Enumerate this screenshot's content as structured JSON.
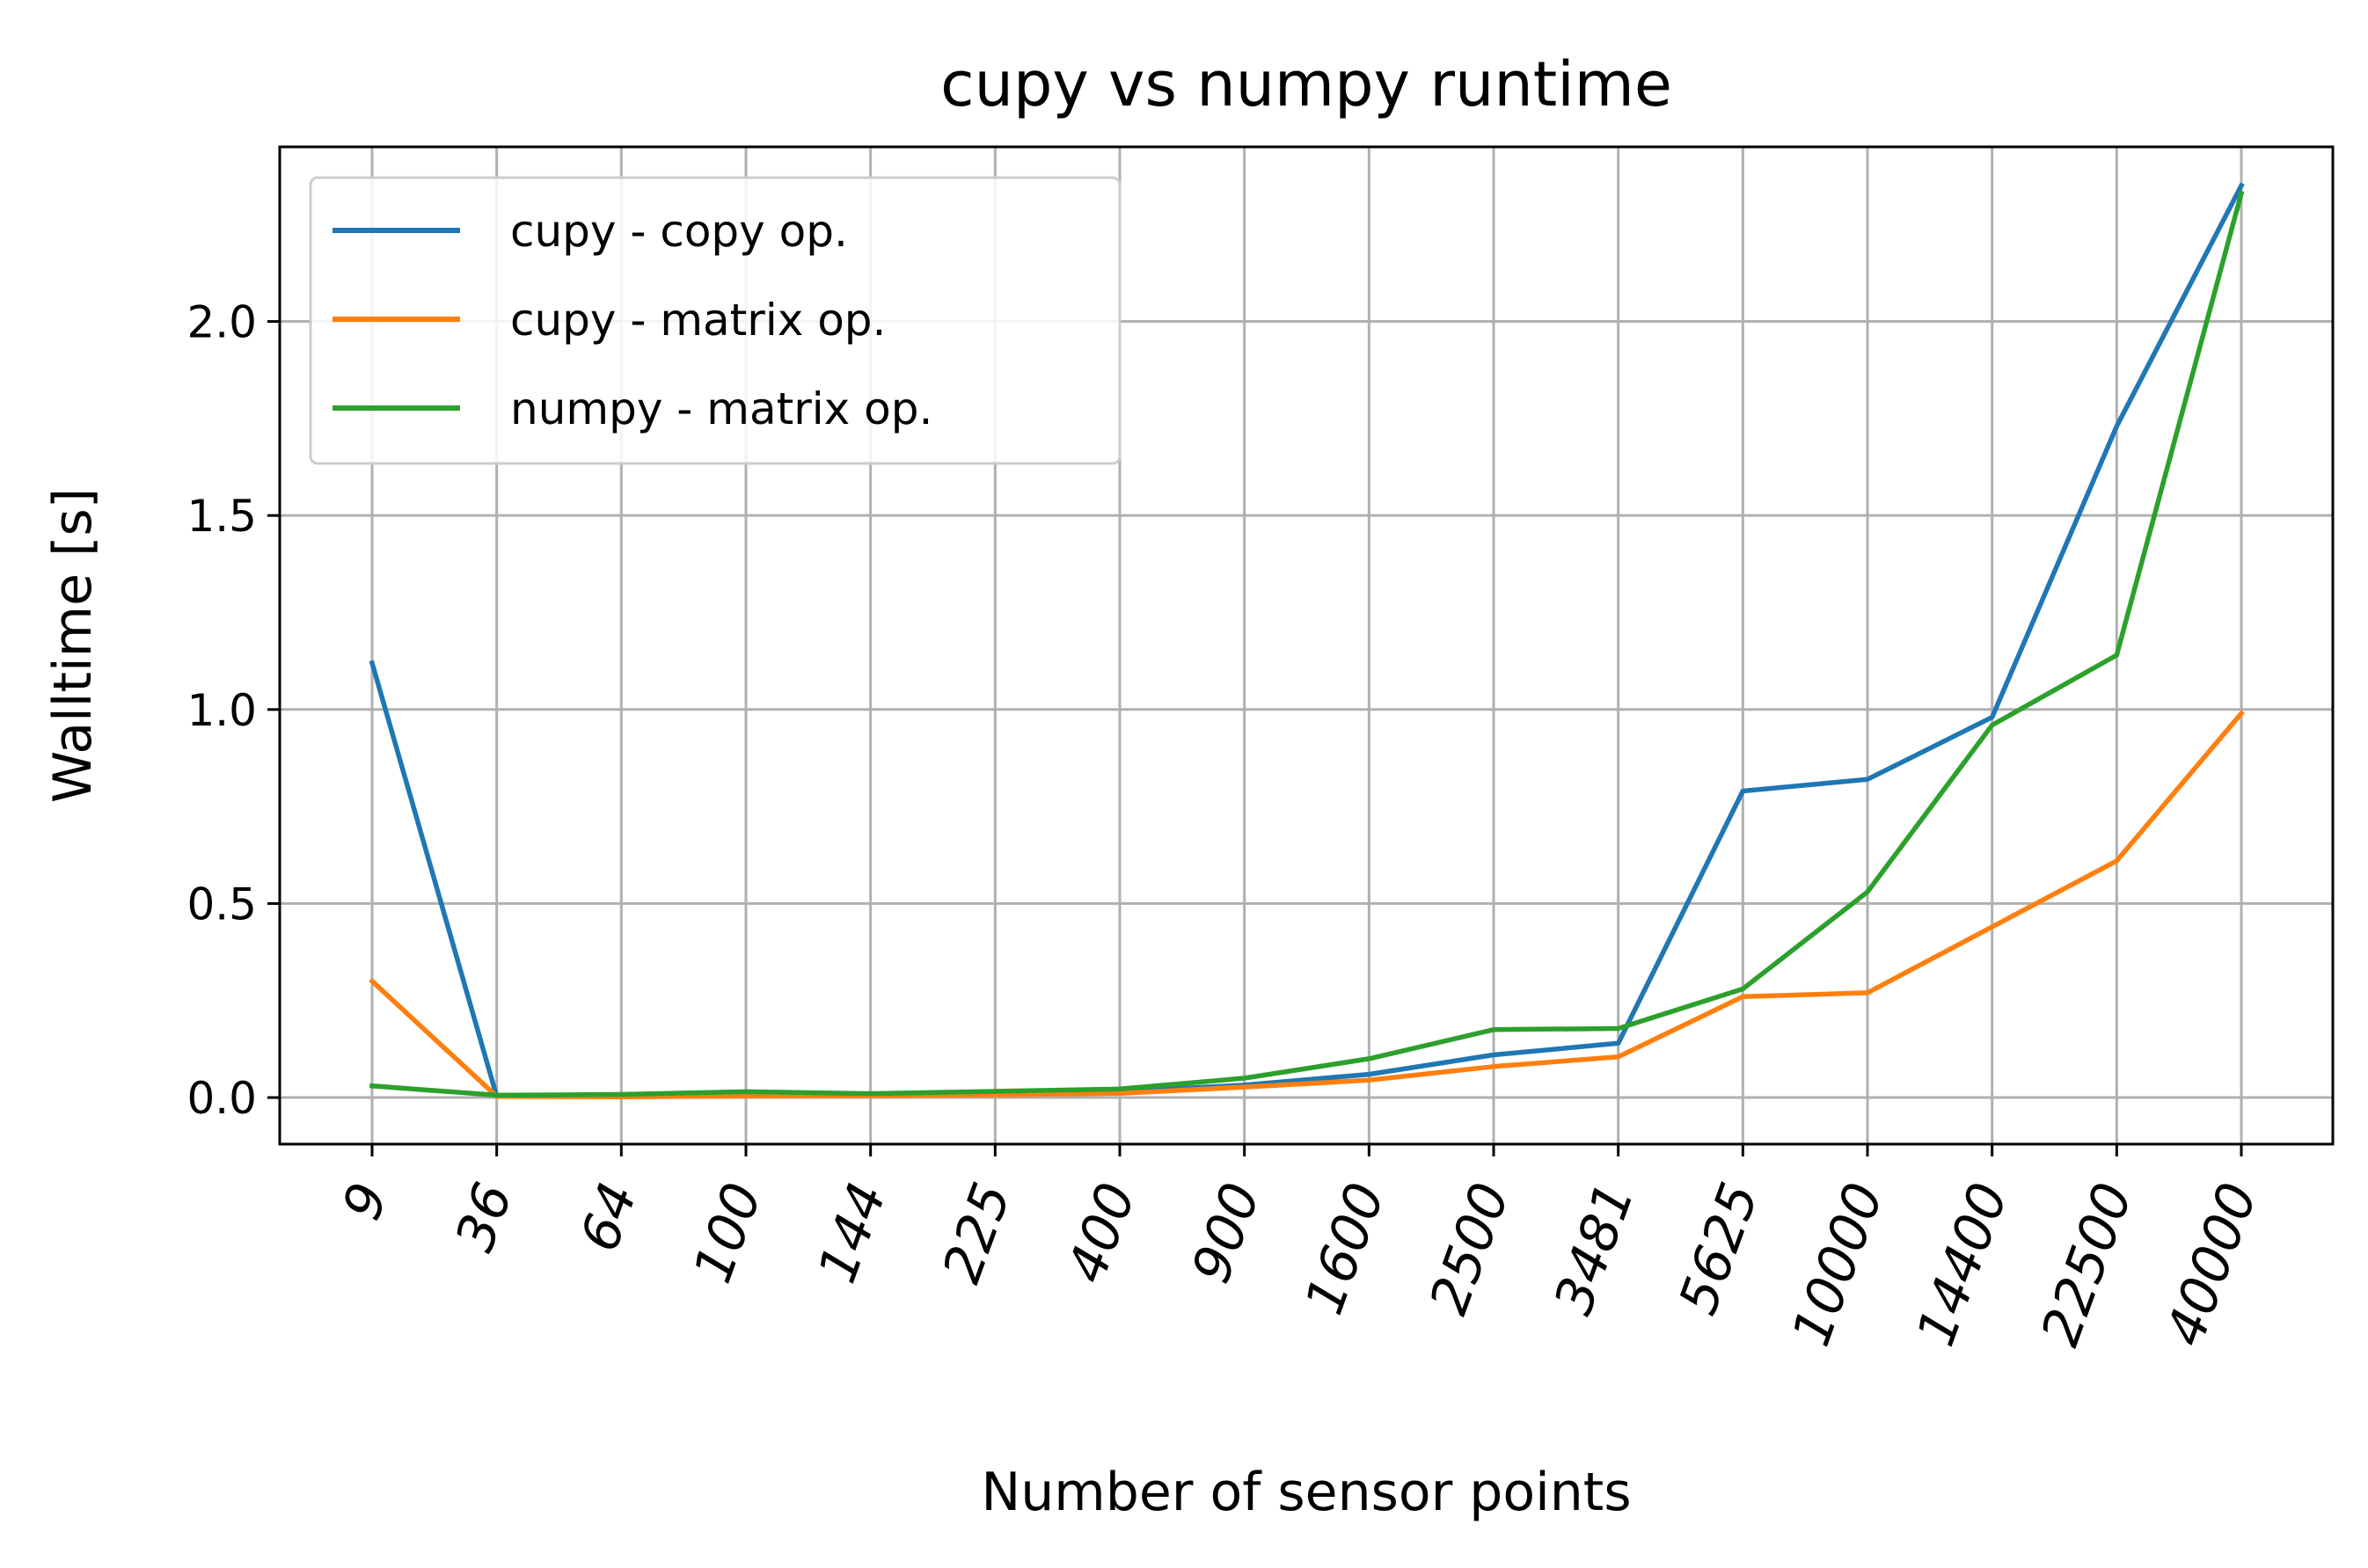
{
  "chart_data": {
    "type": "line",
    "title": "cupy vs numpy runtime",
    "xlabel": "Number of sensor points",
    "ylabel": "Walltime [s]",
    "categories": [
      "9",
      "36",
      "64",
      "100",
      "144",
      "225",
      "400",
      "900",
      "1600",
      "2500",
      "3481",
      "5625",
      "10000",
      "14400",
      "22500",
      "40000"
    ],
    "yticks": [
      "0.0",
      "0.5",
      "1.0",
      "1.5",
      "2.0"
    ],
    "ylim": [
      -0.12,
      2.45
    ],
    "grid": true,
    "legend_position": "upper-left",
    "series": [
      {
        "name": "cupy - copy op.",
        "color": "#1f77b4",
        "values": [
          1.12,
          0.003,
          0.003,
          0.006,
          0.006,
          0.011,
          0.016,
          0.032,
          0.06,
          0.11,
          0.14,
          0.79,
          0.82,
          0.98,
          1.73,
          2.35
        ]
      },
      {
        "name": "cupy - matrix op.",
        "color": "#ff7f0e",
        "values": [
          0.3,
          0.003,
          0.002,
          0.004,
          0.005,
          0.007,
          0.011,
          0.027,
          0.045,
          0.08,
          0.105,
          0.26,
          0.27,
          0.44,
          0.61,
          0.99
        ]
      },
      {
        "name": "numpy - matrix op.",
        "color": "#2ca02c",
        "values": [
          0.03,
          0.006,
          0.008,
          0.015,
          0.01,
          0.016,
          0.022,
          0.05,
          0.1,
          0.175,
          0.178,
          0.28,
          0.53,
          0.96,
          1.14,
          2.33
        ]
      }
    ]
  }
}
